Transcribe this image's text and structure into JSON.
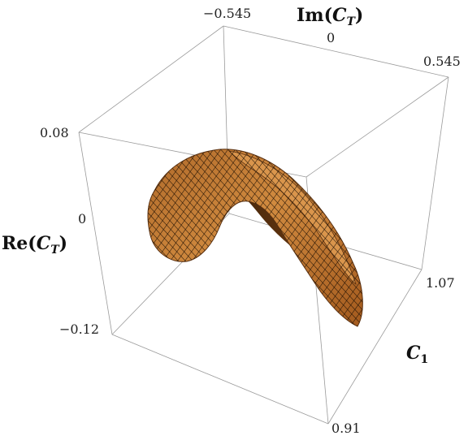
{
  "chart_data": {
    "type": "surface3d",
    "title": "",
    "axes": {
      "c1": {
        "label_main": "C",
        "label_sub": "1",
        "range": [
          0.91,
          1.07
        ],
        "ticks": [
          "0.91",
          "1.07"
        ]
      },
      "im": {
        "label_prefix": "Im(",
        "label_main": "C",
        "label_sub": "T",
        "label_suffix": ")",
        "range": [
          -0.545,
          0.545
        ],
        "ticks": [
          "−0.545",
          "0",
          "0.545"
        ]
      },
      "re": {
        "label_prefix": "Re(",
        "label_main": "C",
        "label_sub": "T",
        "label_suffix": ")",
        "range": [
          -0.12,
          0.08
        ],
        "ticks": [
          "0.08",
          "0",
          "−0.12"
        ]
      }
    },
    "surface": {
      "shape": "saddle",
      "color": "#c87a33",
      "edge_color": "#6b3a12",
      "mesh_color": "#1a0e04",
      "points": [
        {
          "c1": 0.93,
          "im": -0.4,
          "re": 0.0
        },
        {
          "c1": 0.95,
          "im": -0.2,
          "re": 0.06
        },
        {
          "c1": 0.99,
          "im": 0.0,
          "re": 0.08
        },
        {
          "c1": 1.02,
          "im": 0.2,
          "re": 0.05
        },
        {
          "c1": 1.05,
          "im": 0.4,
          "re": -0.12
        }
      ]
    }
  }
}
